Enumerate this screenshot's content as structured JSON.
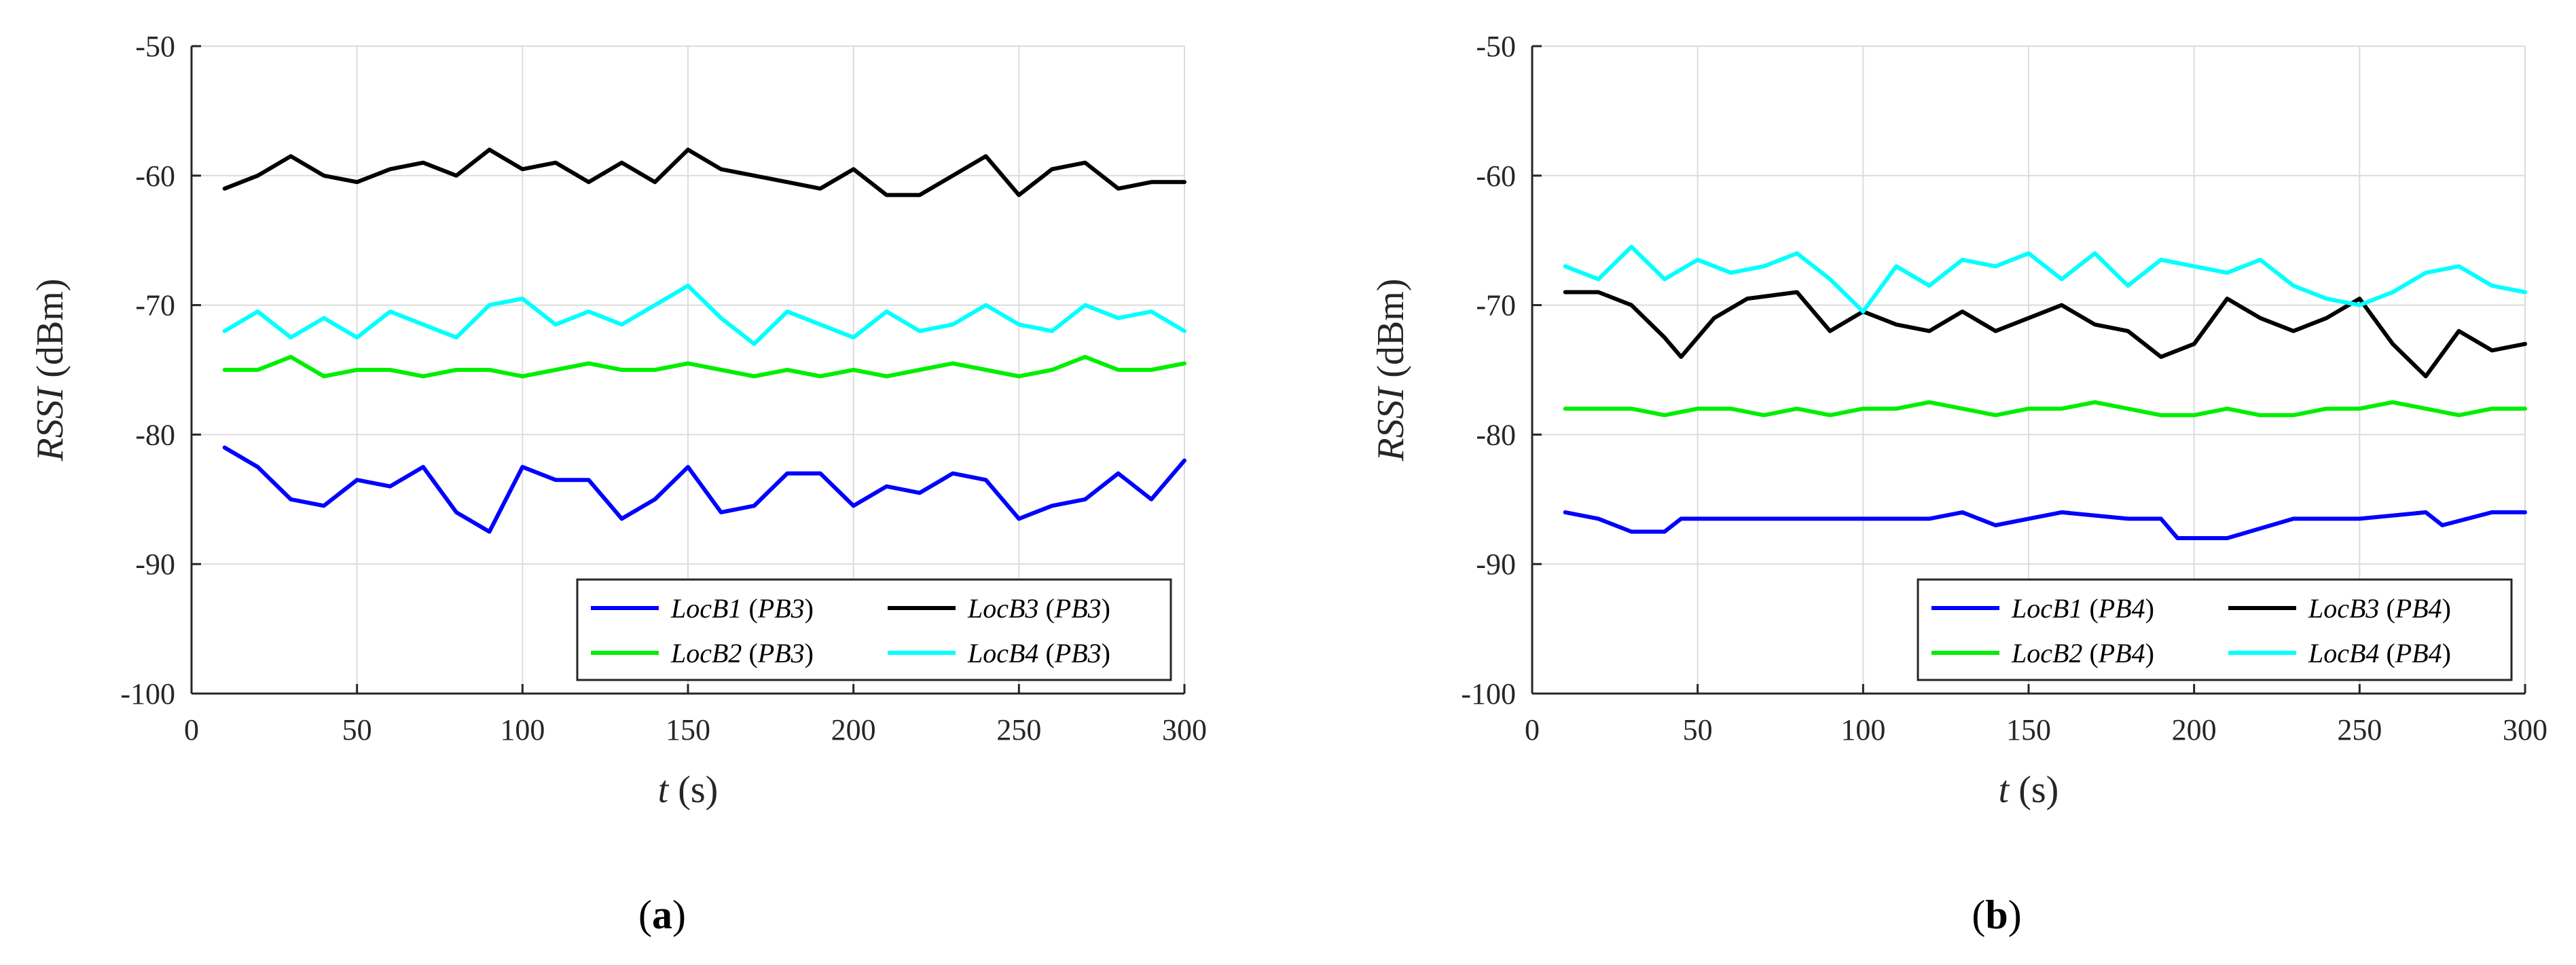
{
  "chart_data": [
    {
      "type": "line",
      "caption": "a",
      "xlabel_italic": "t",
      "xlabel_rest": " (s)",
      "ylabel_italic": "RSSI",
      "ylabel_rest": " (dBm)",
      "xlim": [
        0,
        300
      ],
      "ylim": [
        -100,
        -50
      ],
      "xticks": [
        0,
        50,
        100,
        150,
        200,
        250,
        300
      ],
      "yticks": [
        -100,
        -90,
        -80,
        -70,
        -60,
        -50
      ],
      "grid": true,
      "legend_position": "bottom-right",
      "series": [
        {
          "name": "LocB1",
          "tag": "(PB3)",
          "color": "#0000ff",
          "x": [
            10,
            20,
            30,
            40,
            50,
            60,
            70,
            80,
            90,
            100,
            110,
            120,
            130,
            140,
            150,
            160,
            170,
            180,
            190,
            200,
            210,
            220,
            230,
            240,
            250,
            260,
            270,
            280,
            290,
            300
          ],
          "y": [
            -81,
            -82.5,
            -85,
            -85.5,
            -83.5,
            -84,
            -82.5,
            -86,
            -87.5,
            -82.5,
            -83.5,
            -83.5,
            -86.5,
            -85,
            -82.5,
            -86,
            -85.5,
            -83,
            -83,
            -85.5,
            -84,
            -84.5,
            -83,
            -83.5,
            -86.5,
            -85.5,
            -85,
            -83,
            -85,
            -82
          ]
        },
        {
          "name": "LocB3",
          "tag": "(PB3)",
          "color": "#000000",
          "x": [
            10,
            20,
            30,
            40,
            50,
            60,
            70,
            80,
            90,
            100,
            110,
            120,
            130,
            140,
            150,
            160,
            170,
            180,
            190,
            200,
            210,
            220,
            230,
            240,
            250,
            260,
            270,
            280,
            290,
            300
          ],
          "y": [
            -61,
            -60,
            -58.5,
            -60,
            -60.5,
            -59.5,
            -59,
            -60,
            -58,
            -59.5,
            -59,
            -60.5,
            -59,
            -60.5,
            -58,
            -59.5,
            -60,
            -60.5,
            -61,
            -59.5,
            -61.5,
            -61.5,
            -60,
            -58.5,
            -61.5,
            -59.5,
            -59,
            -61,
            -60.5,
            -60.5
          ]
        },
        {
          "name": "LocB2",
          "tag": "(PB3)",
          "color": "#00ee00",
          "x": [
            10,
            20,
            30,
            40,
            50,
            60,
            70,
            80,
            90,
            100,
            110,
            120,
            130,
            140,
            150,
            160,
            170,
            180,
            190,
            200,
            210,
            220,
            230,
            240,
            250,
            260,
            270,
            280,
            290,
            300
          ],
          "y": [
            -75,
            -75,
            -74,
            -75.5,
            -75,
            -75,
            -75.5,
            -75,
            -75,
            -75.5,
            -75,
            -74.5,
            -75,
            -75,
            -74.5,
            -75,
            -75.5,
            -75,
            -75.5,
            -75,
            -75.5,
            -75,
            -74.5,
            -75,
            -75.5,
            -75,
            -74,
            -75,
            -75,
            -74.5
          ]
        },
        {
          "name": "LocB4",
          "tag": "(PB3)",
          "color": "#00ffff",
          "x": [
            10,
            20,
            30,
            40,
            50,
            60,
            70,
            80,
            90,
            100,
            110,
            120,
            130,
            140,
            150,
            160,
            170,
            180,
            190,
            200,
            210,
            220,
            230,
            240,
            250,
            260,
            270,
            280,
            290,
            300
          ],
          "y": [
            -72,
            -70.5,
            -72.5,
            -71,
            -72.5,
            -70.5,
            -71.5,
            -72.5,
            -70,
            -69.5,
            -71.5,
            -70.5,
            -71.5,
            -70,
            -68.5,
            -71,
            -73,
            -70.5,
            -71.5,
            -72.5,
            -70.5,
            -72,
            -71.5,
            -70,
            -71.5,
            -72,
            -70,
            -71,
            -70.5,
            -72
          ]
        }
      ]
    },
    {
      "type": "line",
      "caption": "b",
      "xlabel_italic": "t",
      "xlabel_rest": " (s)",
      "ylabel_italic": "RSSI",
      "ylabel_rest": " (dBm)",
      "xlim": [
        0,
        300
      ],
      "ylim": [
        -100,
        -50
      ],
      "xticks": [
        0,
        50,
        100,
        150,
        200,
        250,
        300
      ],
      "yticks": [
        -100,
        -90,
        -80,
        -70,
        -60,
        -50
      ],
      "grid": true,
      "legend_position": "bottom-right",
      "series": [
        {
          "name": "LocB1",
          "tag": "(PB4)",
          "color": "#0000ff",
          "x": [
            10,
            20,
            30,
            40,
            45,
            60,
            80,
            100,
            120,
            130,
            140,
            160,
            180,
            190,
            195,
            210,
            230,
            250,
            270,
            275,
            290,
            300
          ],
          "y": [
            -86,
            -86.5,
            -87.5,
            -87.5,
            -86.5,
            -86.5,
            -86.5,
            -86.5,
            -86.5,
            -86,
            -87,
            -86,
            -86.5,
            -86.5,
            -88,
            -88,
            -86.5,
            -86.5,
            -86,
            -87,
            -86,
            -86
          ]
        },
        {
          "name": "LocB3",
          "tag": "(PB4)",
          "color": "#000000",
          "x": [
            10,
            20,
            30,
            40,
            45,
            55,
            65,
            80,
            90,
            100,
            110,
            120,
            130,
            140,
            150,
            160,
            170,
            180,
            190,
            200,
            210,
            220,
            230,
            240,
            250,
            260,
            270,
            280,
            290,
            300
          ],
          "y": [
            -69,
            -69,
            -70,
            -72.5,
            -74,
            -71,
            -69.5,
            -69,
            -72,
            -70.5,
            -71.5,
            -72,
            -70.5,
            -72,
            -71,
            -70,
            -71.5,
            -72,
            -74,
            -73,
            -69.5,
            -71,
            -72,
            -71,
            -69.5,
            -73,
            -75.5,
            -72,
            -73.5,
            -73
          ]
        },
        {
          "name": "LocB2",
          "tag": "(PB4)",
          "color": "#00ee00",
          "x": [
            10,
            20,
            30,
            40,
            50,
            60,
            70,
            80,
            90,
            100,
            110,
            120,
            130,
            140,
            150,
            160,
            170,
            180,
            190,
            200,
            210,
            220,
            230,
            240,
            250,
            260,
            270,
            280,
            290,
            300
          ],
          "y": [
            -78,
            -78,
            -78,
            -78.5,
            -78,
            -78,
            -78.5,
            -78,
            -78.5,
            -78,
            -78,
            -77.5,
            -78,
            -78.5,
            -78,
            -78,
            -77.5,
            -78,
            -78.5,
            -78.5,
            -78,
            -78.5,
            -78.5,
            -78,
            -78,
            -77.5,
            -78,
            -78.5,
            -78,
            -78
          ]
        },
        {
          "name": "LocB4",
          "tag": "(PB4)",
          "color": "#00ffff",
          "x": [
            10,
            20,
            30,
            40,
            50,
            60,
            70,
            80,
            90,
            100,
            110,
            120,
            130,
            140,
            150,
            160,
            170,
            180,
            190,
            200,
            210,
            220,
            230,
            240,
            250,
            260,
            270,
            280,
            290,
            300
          ],
          "y": [
            -67,
            -68,
            -65.5,
            -68,
            -66.5,
            -67.5,
            -67,
            -66,
            -68,
            -70.5,
            -67,
            -68.5,
            -66.5,
            -67,
            -66,
            -68,
            -66,
            -68.5,
            -66.5,
            -67,
            -67.5,
            -66.5,
            -68.5,
            -69.5,
            -70,
            -69,
            -67.5,
            -67,
            -68.5,
            -69
          ]
        }
      ]
    }
  ]
}
